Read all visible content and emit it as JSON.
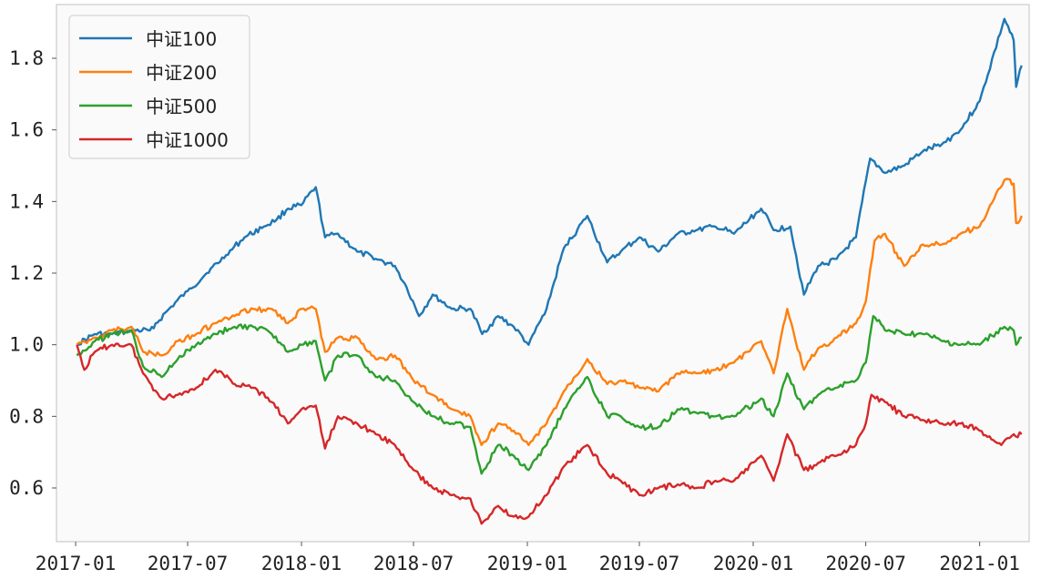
{
  "chart_data": {
    "type": "line",
    "title": "",
    "xlabel": "",
    "ylabel": "",
    "grid": false,
    "legend_position": "upper-left",
    "xlim": [
      "2016-12-01",
      "2021-03-22"
    ],
    "ylim": [
      0.45,
      1.95
    ],
    "yticks": [
      0.6,
      0.8,
      1.0,
      1.2,
      1.4,
      1.6,
      1.8
    ],
    "ytick_labels": [
      "0.6",
      "0.8",
      "1.0",
      "1.2",
      "1.4",
      "1.6",
      "1.8"
    ],
    "xticks": [
      "2017-01-01",
      "2017-07-01",
      "2018-01-01",
      "2018-07-01",
      "2019-01-01",
      "2019-07-01",
      "2020-01-01",
      "2020-07-01",
      "2021-01-01"
    ],
    "xtick_labels": [
      "2017-01",
      "2017-07",
      "2018-01",
      "2018-07",
      "2019-01",
      "2019-07",
      "2020-01",
      "2020-07",
      "2021-01"
    ],
    "series": [
      {
        "name": "中证100",
        "color": "#1f77b4",
        "x": [
          "2017-01-03",
          "2017-02-01",
          "2017-03-01",
          "2017-04-01",
          "2017-05-01",
          "2017-06-01",
          "2017-07-01",
          "2017-08-01",
          "2017-09-01",
          "2017-10-01",
          "2017-11-01",
          "2017-11-22",
          "2017-12-10",
          "2018-01-01",
          "2018-01-24",
          "2018-02-08",
          "2018-03-01",
          "2018-04-01",
          "2018-05-01",
          "2018-06-01",
          "2018-06-20",
          "2018-07-10",
          "2018-08-01",
          "2018-09-01",
          "2018-10-01",
          "2018-10-20",
          "2018-11-15",
          "2018-12-10",
          "2019-01-03",
          "2019-02-01",
          "2019-03-01",
          "2019-04-08",
          "2019-05-10",
          "2019-06-01",
          "2019-07-01",
          "2019-08-01",
          "2019-09-01",
          "2019-10-01",
          "2019-11-01",
          "2019-12-01",
          "2020-01-14",
          "2020-02-03",
          "2020-03-01",
          "2020-03-23",
          "2020-04-15",
          "2020-05-15",
          "2020-06-15",
          "2020-07-08",
          "2020-08-01",
          "2020-09-01",
          "2020-10-01",
          "2020-11-01",
          "2020-12-01",
          "2021-01-01",
          "2021-02-10",
          "2021-02-25",
          "2021-03-01",
          "2021-03-10"
        ],
        "values": [
          1.0,
          1.03,
          1.03,
          1.04,
          1.04,
          1.1,
          1.15,
          1.2,
          1.25,
          1.3,
          1.33,
          1.35,
          1.38,
          1.39,
          1.44,
          1.3,
          1.31,
          1.26,
          1.24,
          1.22,
          1.16,
          1.08,
          1.14,
          1.1,
          1.1,
          1.03,
          1.08,
          1.05,
          1.0,
          1.1,
          1.27,
          1.36,
          1.23,
          1.26,
          1.3,
          1.26,
          1.31,
          1.32,
          1.33,
          1.31,
          1.38,
          1.32,
          1.33,
          1.14,
          1.22,
          1.24,
          1.3,
          1.52,
          1.48,
          1.5,
          1.54,
          1.56,
          1.6,
          1.68,
          1.91,
          1.85,
          1.72,
          1.78
        ]
      },
      {
        "name": "中证200",
        "color": "#ff7f0e",
        "x": [
          "2017-01-03",
          "2017-02-01",
          "2017-03-01",
          "2017-04-01",
          "2017-04-20",
          "2017-05-20",
          "2017-06-15",
          "2017-07-15",
          "2017-08-15",
          "2017-09-15",
          "2017-10-15",
          "2017-11-14",
          "2017-12-10",
          "2018-01-01",
          "2018-01-24",
          "2018-02-08",
          "2018-03-01",
          "2018-04-01",
          "2018-05-01",
          "2018-06-01",
          "2018-07-01",
          "2018-08-01",
          "2018-09-01",
          "2018-10-01",
          "2018-10-19",
          "2018-11-15",
          "2018-12-10",
          "2019-01-03",
          "2019-02-01",
          "2019-03-01",
          "2019-04-08",
          "2019-05-10",
          "2019-06-01",
          "2019-07-01",
          "2019-08-01",
          "2019-09-01",
          "2019-10-01",
          "2019-11-01",
          "2019-12-01",
          "2020-01-14",
          "2020-02-03",
          "2020-02-25",
          "2020-03-23",
          "2020-04-15",
          "2020-05-15",
          "2020-06-15",
          "2020-07-01",
          "2020-07-15",
          "2020-08-01",
          "2020-09-01",
          "2020-10-01",
          "2020-11-01",
          "2020-12-01",
          "2021-01-01",
          "2021-02-10",
          "2021-02-25",
          "2021-03-01",
          "2021-03-10"
        ],
        "values": [
          1.0,
          1.02,
          1.04,
          1.05,
          0.98,
          0.97,
          1.01,
          1.03,
          1.06,
          1.08,
          1.1,
          1.1,
          1.06,
          1.1,
          1.1,
          0.98,
          1.02,
          1.02,
          0.96,
          0.97,
          0.9,
          0.86,
          0.82,
          0.8,
          0.72,
          0.78,
          0.76,
          0.72,
          0.78,
          0.87,
          0.96,
          0.89,
          0.9,
          0.88,
          0.87,
          0.92,
          0.92,
          0.93,
          0.95,
          1.01,
          0.92,
          1.1,
          0.93,
          0.99,
          1.02,
          1.06,
          1.12,
          1.29,
          1.31,
          1.22,
          1.28,
          1.28,
          1.31,
          1.33,
          1.46,
          1.45,
          1.34,
          1.36
        ]
      },
      {
        "name": "中证500",
        "color": "#2ca02c",
        "x": [
          "2017-01-03",
          "2017-02-01",
          "2017-03-01",
          "2017-04-01",
          "2017-04-20",
          "2017-05-20",
          "2017-06-15",
          "2017-07-15",
          "2017-08-15",
          "2017-09-15",
          "2017-10-15",
          "2017-11-14",
          "2017-12-10",
          "2018-01-01",
          "2018-01-24",
          "2018-02-08",
          "2018-03-01",
          "2018-04-01",
          "2018-05-01",
          "2018-06-01",
          "2018-07-01",
          "2018-08-01",
          "2018-09-01",
          "2018-10-01",
          "2018-10-19",
          "2018-11-15",
          "2018-12-10",
          "2019-01-03",
          "2019-02-01",
          "2019-03-01",
          "2019-04-08",
          "2019-05-10",
          "2019-06-01",
          "2019-07-01",
          "2019-08-01",
          "2019-09-01",
          "2019-10-01",
          "2019-11-01",
          "2019-12-01",
          "2020-01-14",
          "2020-02-03",
          "2020-02-25",
          "2020-03-23",
          "2020-04-15",
          "2020-05-15",
          "2020-06-15",
          "2020-07-01",
          "2020-07-13",
          "2020-08-01",
          "2020-09-01",
          "2020-10-01",
          "2020-11-01",
          "2020-12-01",
          "2021-01-01",
          "2021-02-10",
          "2021-02-25",
          "2021-03-01",
          "2021-03-10"
        ],
        "values": [
          0.97,
          1.01,
          1.03,
          1.04,
          0.94,
          0.91,
          0.96,
          1.0,
          1.03,
          1.05,
          1.05,
          1.03,
          0.98,
          1.0,
          1.01,
          0.9,
          0.97,
          0.97,
          0.91,
          0.9,
          0.84,
          0.8,
          0.78,
          0.77,
          0.64,
          0.72,
          0.69,
          0.65,
          0.72,
          0.82,
          0.91,
          0.8,
          0.8,
          0.77,
          0.77,
          0.82,
          0.81,
          0.8,
          0.8,
          0.85,
          0.8,
          0.92,
          0.82,
          0.86,
          0.88,
          0.9,
          0.95,
          1.08,
          1.04,
          1.03,
          1.03,
          1.01,
          1.0,
          1.0,
          1.05,
          1.04,
          1.0,
          1.02
        ]
      },
      {
        "name": "中证1000",
        "color": "#d62728",
        "x": [
          "2017-01-03",
          "2017-01-15",
          "2017-02-01",
          "2017-03-01",
          "2017-04-01",
          "2017-04-20",
          "2017-05-20",
          "2017-06-15",
          "2017-07-15",
          "2017-08-15",
          "2017-09-15",
          "2017-10-15",
          "2017-11-14",
          "2017-12-10",
          "2018-01-01",
          "2018-01-24",
          "2018-02-08",
          "2018-03-01",
          "2018-04-01",
          "2018-05-01",
          "2018-06-01",
          "2018-07-01",
          "2018-08-01",
          "2018-09-01",
          "2018-10-01",
          "2018-10-19",
          "2018-11-15",
          "2018-12-10",
          "2019-01-03",
          "2019-02-01",
          "2019-03-01",
          "2019-04-08",
          "2019-05-10",
          "2019-06-01",
          "2019-07-01",
          "2019-08-01",
          "2019-09-01",
          "2019-10-01",
          "2019-11-01",
          "2019-12-01",
          "2020-01-14",
          "2020-02-03",
          "2020-02-25",
          "2020-03-23",
          "2020-04-15",
          "2020-05-15",
          "2020-06-15",
          "2020-07-01",
          "2020-07-10",
          "2020-08-01",
          "2020-09-01",
          "2020-10-01",
          "2020-11-01",
          "2020-12-01",
          "2021-01-01",
          "2021-02-05",
          "2021-02-25",
          "2021-03-10"
        ],
        "values": [
          1.0,
          0.93,
          0.98,
          1.0,
          1.0,
          0.92,
          0.85,
          0.86,
          0.88,
          0.93,
          0.89,
          0.88,
          0.84,
          0.78,
          0.82,
          0.83,
          0.71,
          0.8,
          0.78,
          0.75,
          0.72,
          0.65,
          0.6,
          0.58,
          0.57,
          0.5,
          0.55,
          0.52,
          0.52,
          0.58,
          0.66,
          0.72,
          0.64,
          0.62,
          0.58,
          0.6,
          0.61,
          0.6,
          0.62,
          0.62,
          0.69,
          0.62,
          0.75,
          0.65,
          0.67,
          0.69,
          0.72,
          0.78,
          0.86,
          0.84,
          0.8,
          0.79,
          0.78,
          0.78,
          0.76,
          0.72,
          0.75,
          0.75
        ]
      }
    ]
  }
}
